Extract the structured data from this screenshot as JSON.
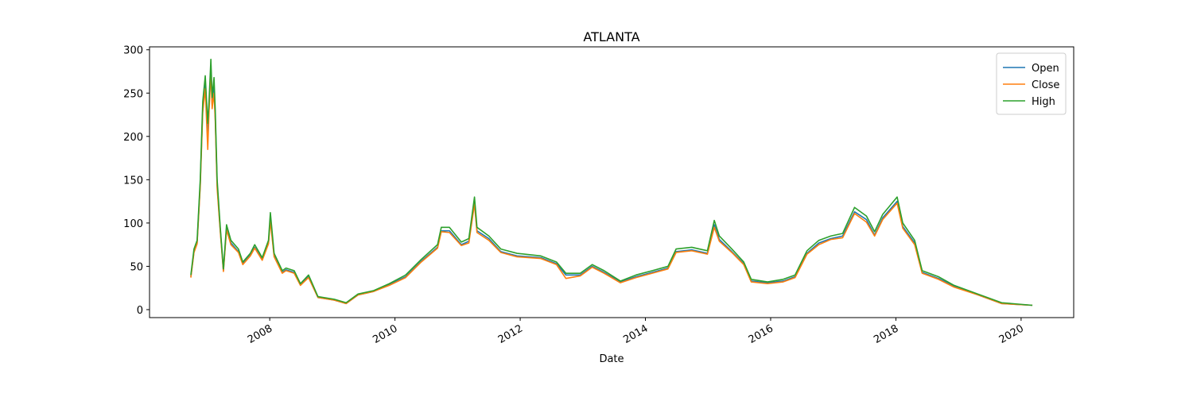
{
  "chart_data": {
    "type": "line",
    "title": "ATLANTA",
    "x_label": "Date",
    "x": [
      2006.74,
      2006.79,
      2006.84,
      2006.89,
      2006.93,
      2006.97,
      2007.01,
      2007.03,
      2007.06,
      2007.08,
      2007.11,
      2007.13,
      2007.16,
      2007.21,
      2007.26,
      2007.31,
      2007.38,
      2007.5,
      2007.57,
      2007.69,
      2007.76,
      2007.88,
      2007.98,
      2008.01,
      2008.07,
      2008.2,
      2008.26,
      2008.39,
      2008.49,
      2008.62,
      2008.77,
      2009.03,
      2009.22,
      2009.41,
      2009.66,
      2009.91,
      2010.17,
      2010.42,
      2010.68,
      2010.74,
      2010.87,
      2011.06,
      2011.18,
      2011.27,
      2011.31,
      2011.5,
      2011.69,
      2011.95,
      2012.33,
      2012.58,
      2012.73,
      2012.96,
      2013.15,
      2013.34,
      2013.6,
      2013.85,
      2014.11,
      2014.36,
      2014.49,
      2014.74,
      2014.99,
      2015.1,
      2015.18,
      2015.38,
      2015.57,
      2015.69,
      2015.95,
      2016.2,
      2016.39,
      2016.58,
      2016.77,
      2016.96,
      2017.15,
      2017.34,
      2017.53,
      2017.66,
      2017.79,
      2018.02,
      2018.11,
      2018.3,
      2018.42,
      2018.68,
      2018.93,
      2019.31,
      2019.69,
      2020.18
    ],
    "series": [
      {
        "name": "Open",
        "color": "#1f77b4",
        "values": [
          38,
          67,
          77,
          145,
          232,
          260,
          205,
          232,
          280,
          236,
          258,
          222,
          144,
          92,
          45,
          94,
          77,
          67,
          53,
          63,
          72,
          58,
          77,
          106,
          62,
          43,
          46,
          43,
          29,
          38,
          14,
          11,
          7,
          17,
          21,
          29,
          38,
          56,
          72,
          91,
          91,
          75,
          79,
          124,
          91,
          82,
          67,
          62,
          60,
          53,
          40,
          40,
          50,
          43,
          32,
          38,
          43,
          48,
          67,
          69,
          65,
          98,
          81,
          67,
          53,
          33,
          31,
          33,
          38,
          65,
          77,
          82,
          85,
          113,
          104,
          86,
          106,
          125,
          96,
          77,
          43,
          36,
          27,
          17,
          7,
          5
        ]
      },
      {
        "name": "Close",
        "color": "#ff7f0e",
        "values": [
          37,
          66,
          76,
          142,
          228,
          255,
          185,
          228,
          275,
          232,
          250,
          218,
          140,
          90,
          44,
          92,
          75,
          66,
          52,
          62,
          71,
          57,
          76,
          102,
          61,
          42,
          45,
          42,
          28,
          37,
          14,
          11,
          7,
          17,
          21,
          28,
          37,
          55,
          71,
          90,
          89,
          74,
          77,
          122,
          89,
          80,
          66,
          61,
          59,
          52,
          36,
          39,
          49,
          42,
          31,
          37,
          42,
          47,
          66,
          68,
          64,
          95,
          79,
          66,
          52,
          32,
          30,
          32,
          37,
          64,
          75,
          81,
          83,
          111,
          101,
          85,
          104,
          123,
          94,
          75,
          42,
          35,
          26,
          17,
          7,
          5
        ]
      },
      {
        "name": "High",
        "color": "#2ca02c",
        "values": [
          40,
          70,
          80,
          150,
          240,
          270,
          215,
          240,
          289,
          245,
          268,
          230,
          150,
          95,
          47,
          98,
          80,
          70,
          55,
          65,
          75,
          60,
          80,
          112,
          65,
          45,
          48,
          45,
          30,
          40,
          15,
          12,
          8,
          18,
          22,
          30,
          40,
          58,
          75,
          95,
          95,
          78,
          82,
          130,
          95,
          85,
          70,
          65,
          62,
          55,
          42,
          42,
          52,
          45,
          33,
          40,
          45,
          50,
          70,
          72,
          68,
          103,
          85,
          70,
          55,
          35,
          32,
          35,
          40,
          68,
          80,
          85,
          88,
          118,
          108,
          90,
          110,
          130,
          100,
          80,
          45,
          38,
          28,
          18,
          8,
          5
        ]
      }
    ],
    "xlim": [
      2006.08,
      2020.84
    ],
    "xticks": [
      2008,
      2010,
      2012,
      2014,
      2016,
      2018,
      2020
    ],
    "ylim": [
      -9.2,
      303.4
    ],
    "yticks": [
      0,
      50,
      100,
      150,
      200,
      250,
      300
    ],
    "legend": "upper right"
  }
}
